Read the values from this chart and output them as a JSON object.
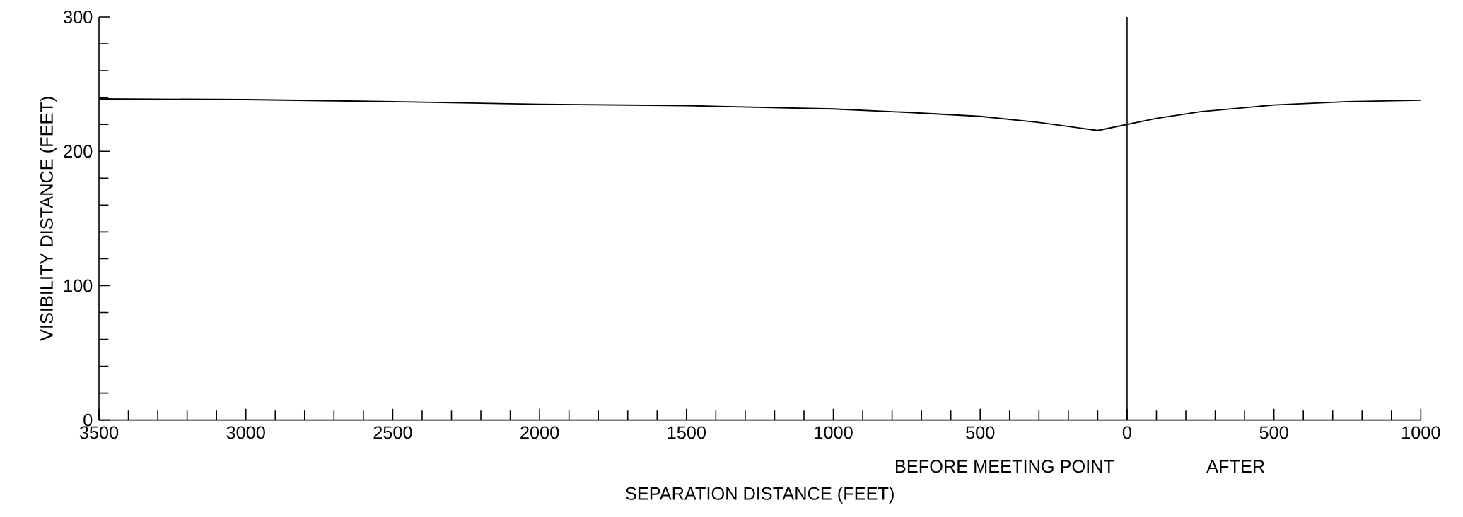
{
  "chart_data": {
    "type": "line",
    "xlabel": "SEPARATION DISTANCE   (FEET)",
    "ylabel": "VISIBILITY DISTANCE   (FEET)",
    "annotations": [
      "BEFORE MEETING POINT",
      "AFTER"
    ],
    "x": [
      -3500,
      -3000,
      -2500,
      -2000,
      -1500,
      -1000,
      -750,
      -500,
      -300,
      -100,
      0,
      100,
      250,
      500,
      750,
      1000
    ],
    "values": [
      239,
      238.5,
      237,
      235,
      234,
      231.5,
      229,
      226,
      221.5,
      215.5,
      220,
      224.5,
      229.5,
      234.5,
      237,
      238
    ],
    "color": "#000000",
    "xlim": [
      -3500,
      1000
    ],
    "xticks": [
      {
        "value": -3500,
        "label": "3500"
      },
      {
        "value": -3000,
        "label": "3000"
      },
      {
        "value": -2500,
        "label": "2500"
      },
      {
        "value": -2000,
        "label": "2000"
      },
      {
        "value": -1500,
        "label": "1500"
      },
      {
        "value": -1000,
        "label": "1000"
      },
      {
        "value": -500,
        "label": "500"
      },
      0,
      500,
      1000
    ],
    "ylim": [
      0,
      300
    ],
    "yticks": [
      0,
      100,
      200,
      300
    ],
    "ref_lines": [
      {
        "axis": "x",
        "value": 0
      }
    ],
    "grid": false,
    "marker": "none",
    "line_style": "solid"
  }
}
